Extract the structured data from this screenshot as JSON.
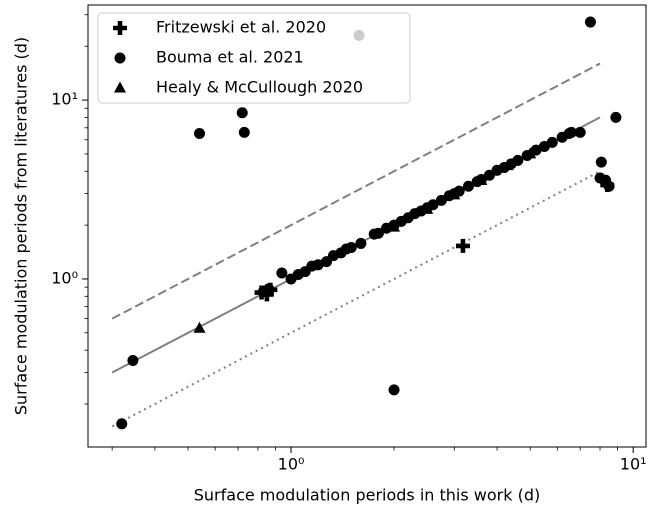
{
  "chart_data": {
    "type": "scatter",
    "x_label": "Surface modulation periods in this work (d)",
    "y_label": "Surface modulation periods from literatures (d)",
    "log_x": true,
    "log_y": true,
    "xlim": [
      0.255,
      10.9
    ],
    "ylim": [
      0.115,
      34
    ],
    "xticks": [
      {
        "value": 1,
        "label": "10⁰"
      },
      {
        "value": 10,
        "label": "10¹"
      }
    ],
    "yticks": [
      {
        "value": 1,
        "label": "10⁰"
      },
      {
        "value": 10,
        "label": "10¹"
      }
    ],
    "minor_ticks": true,
    "legend": "upper left",
    "series": [
      {
        "name": "Fritzewski et al. 2020",
        "marker": "plus",
        "color": "#000000",
        "x": [
          0.82,
          0.87,
          3.18,
          8.4,
          0.85
        ],
        "values": [
          0.84,
          0.87,
          1.53,
          3.35,
          0.82
        ]
      },
      {
        "name": "Bouma et al. 2021",
        "marker": "circle",
        "color": "#000000",
        "x": [
          1.58,
          7.5,
          0.72,
          0.73,
          0.54,
          0.345,
          0.32,
          2.0,
          8.9,
          8.07,
          8.0,
          8.3,
          8.5,
          6.5,
          7.0,
          0.83,
          0.86,
          0.94,
          1.0,
          1.05,
          1.1,
          1.15,
          1.2,
          1.27,
          1.33,
          1.4,
          1.45,
          1.5,
          1.6,
          1.75,
          1.8,
          1.9,
          2.0,
          2.1,
          2.2,
          2.3,
          2.4,
          2.5,
          2.6,
          2.75,
          2.9,
          3.0,
          3.1,
          3.3,
          3.5,
          3.6,
          3.8,
          4.0,
          4.2,
          4.4,
          4.6,
          4.9,
          5.2,
          5.5,
          5.8,
          6.2,
          6.6
        ],
        "values": [
          23,
          27.3,
          8.5,
          6.6,
          6.5,
          0.35,
          0.155,
          0.24,
          8.0,
          4.5,
          3.67,
          3.57,
          3.3,
          6.5,
          6.6,
          0.85,
          0.88,
          1.08,
          1.0,
          1.06,
          1.1,
          1.18,
          1.2,
          1.25,
          1.35,
          1.4,
          1.47,
          1.5,
          1.58,
          1.78,
          1.8,
          1.92,
          2.0,
          2.1,
          2.2,
          2.32,
          2.4,
          2.5,
          2.6,
          2.75,
          2.92,
          3.0,
          3.1,
          3.3,
          3.5,
          3.6,
          3.8,
          4.05,
          4.2,
          4.4,
          4.6,
          4.9,
          5.25,
          5.5,
          5.8,
          6.2,
          6.6
        ]
      },
      {
        "name": "Healy & McCullough 2020",
        "marker": "triangle",
        "color": "#000000",
        "x": [
          0.54,
          2.0,
          2.5,
          3.0,
          3.6,
          4.3,
          5.0
        ],
        "values": [
          0.53,
          1.95,
          2.45,
          2.95,
          3.55,
          4.3,
          5.0
        ]
      }
    ],
    "ref_lines": [
      {
        "style": "solid",
        "color": "#808080",
        "x": [
          0.3,
          8.0
        ],
        "values": [
          0.3,
          8.0
        ]
      },
      {
        "style": "dashed",
        "color": "#808080",
        "x": [
          0.3,
          8.0
        ],
        "values": [
          0.6,
          16.0
        ]
      },
      {
        "style": "dotted",
        "color": "#808080",
        "x": [
          0.3,
          8.0
        ],
        "values": [
          0.15,
          4.0
        ]
      }
    ]
  }
}
